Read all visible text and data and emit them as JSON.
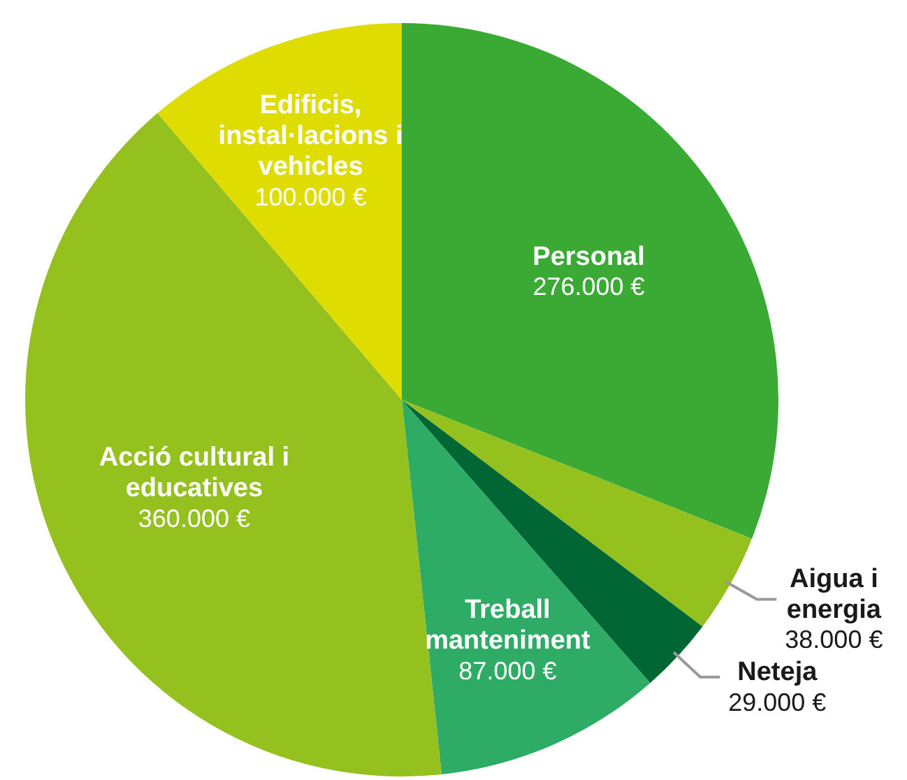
{
  "chart_data": {
    "type": "pie",
    "categories": [
      "Personal",
      "Aigua i energia",
      "Neteja",
      "Treball manteniment",
      "Acció cultural i educatives",
      "Edificis, instal·lacions i vehicles"
    ],
    "values": [
      276000,
      38000,
      29000,
      87000,
      360000,
      100000
    ],
    "value_labels": [
      "276.000 €",
      "38.000 €",
      "29.000 €",
      "87.000 €",
      "360.000 €",
      "100.000 €"
    ],
    "colors": [
      "#3aaa35",
      "#95c11f",
      "#006633",
      "#2eac66",
      "#95c11f",
      "#dedc00"
    ],
    "legend": false
  }
}
